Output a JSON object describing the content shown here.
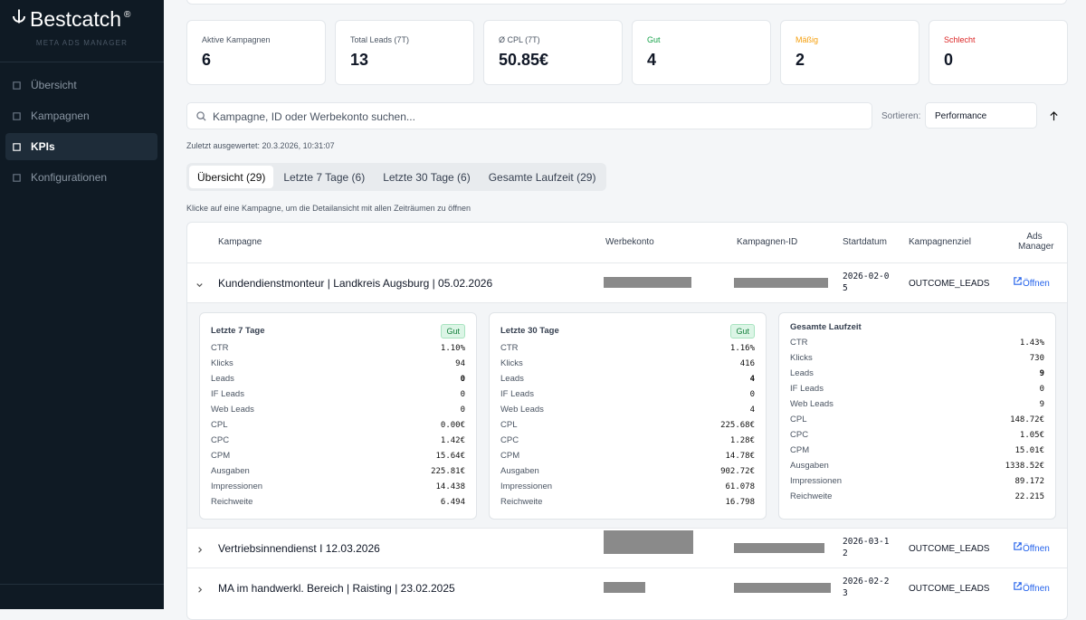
{
  "sidebar": {
    "brand": "Bestcatch",
    "brand_mark": "®",
    "subtitle": "META ADS MANAGER",
    "nav": [
      "Übersicht",
      "Kampagnen",
      "KPIs",
      "Konfigurationen"
    ]
  },
  "stats": [
    {
      "label": "Aktive Kampagnen",
      "value": "6"
    },
    {
      "label": "Total Leads (7T)",
      "value": "13"
    },
    {
      "label": "Ø CPL (7T)",
      "value": "50.85€"
    },
    {
      "label": "Gut",
      "value": "4"
    },
    {
      "label": "Mäßig",
      "value": "2"
    },
    {
      "label": "Schlecht",
      "value": "0"
    }
  ],
  "search": {
    "placeholder": "Kampagne, ID oder Werbekonto suchen...",
    "sort_label": "Sortieren:",
    "sort_value": "Performance"
  },
  "last_evaluated": "Zuletzt ausgewertet: 20.3.2026, 10:31:07",
  "tabs": [
    "Übersicht (29)",
    "Letzte 7 Tage (6)",
    "Letzte 30 Tage (6)",
    "Gesamte Laufzeit (29)"
  ],
  "hint": "Klicke auf eine Kampagne, um die Detailansicht mit allen Zeiträumen zu öffnen",
  "table": {
    "headers": [
      "Kampagne",
      "Werbekonto",
      "Kampagnen-ID",
      "Startdatum",
      "Kampagnenziel",
      "Ads Manager"
    ],
    "rows": [
      {
        "name": "Kundendienstmonteur | Landkreis Augsburg | 05.02.2026",
        "start": "2026-02-05",
        "goal": "OUTCOME_LEADS",
        "action": "Öffnen"
      },
      {
        "name": "Vertriebsinnendienst I 12.03.2026",
        "start": "2026-03-12",
        "goal": "OUTCOME_LEADS",
        "action": "Öffnen"
      },
      {
        "name": "MA im handwerkl. Bereich | Raisting | 23.02.2025",
        "start": "2026-02-23",
        "goal": "OUTCOME_LEADS",
        "action": "Öffnen"
      }
    ]
  },
  "detail": {
    "panels": [
      {
        "title": "Letzte 7 Tage",
        "badge": "Gut",
        "metrics": [
          [
            "CTR",
            "1.10%"
          ],
          [
            "Klicks",
            "94"
          ],
          [
            "Leads",
            "0"
          ],
          [
            "IF Leads",
            "0"
          ],
          [
            "Web Leads",
            "0"
          ],
          [
            "CPL",
            "0.00€"
          ],
          [
            "CPC",
            "1.42€"
          ],
          [
            "CPM",
            "15.64€"
          ],
          [
            "Ausgaben",
            "225.81€"
          ],
          [
            "Impressionen",
            "14.438"
          ],
          [
            "Reichweite",
            "6.494"
          ]
        ]
      },
      {
        "title": "Letzte 30 Tage",
        "badge": "Gut",
        "metrics": [
          [
            "CTR",
            "1.16%"
          ],
          [
            "Klicks",
            "416"
          ],
          [
            "Leads",
            "4"
          ],
          [
            "IF Leads",
            "0"
          ],
          [
            "Web Leads",
            "4"
          ],
          [
            "CPL",
            "225.68€"
          ],
          [
            "CPC",
            "1.28€"
          ],
          [
            "CPM",
            "14.78€"
          ],
          [
            "Ausgaben",
            "902.72€"
          ],
          [
            "Impressionen",
            "61.078"
          ],
          [
            "Reichweite",
            "16.798"
          ]
        ]
      },
      {
        "title": "Gesamte Laufzeit",
        "metrics": [
          [
            "CTR",
            "1.43%"
          ],
          [
            "Klicks",
            "730"
          ],
          [
            "Leads",
            "9"
          ],
          [
            "IF Leads",
            "0"
          ],
          [
            "Web Leads",
            "9"
          ],
          [
            "CPL",
            "148.72€"
          ],
          [
            "CPC",
            "1.05€"
          ],
          [
            "CPM",
            "15.01€"
          ],
          [
            "Ausgaben",
            "1338.52€"
          ],
          [
            "Impressionen",
            "89.172"
          ],
          [
            "Reichweite",
            "22.215"
          ]
        ]
      }
    ]
  }
}
